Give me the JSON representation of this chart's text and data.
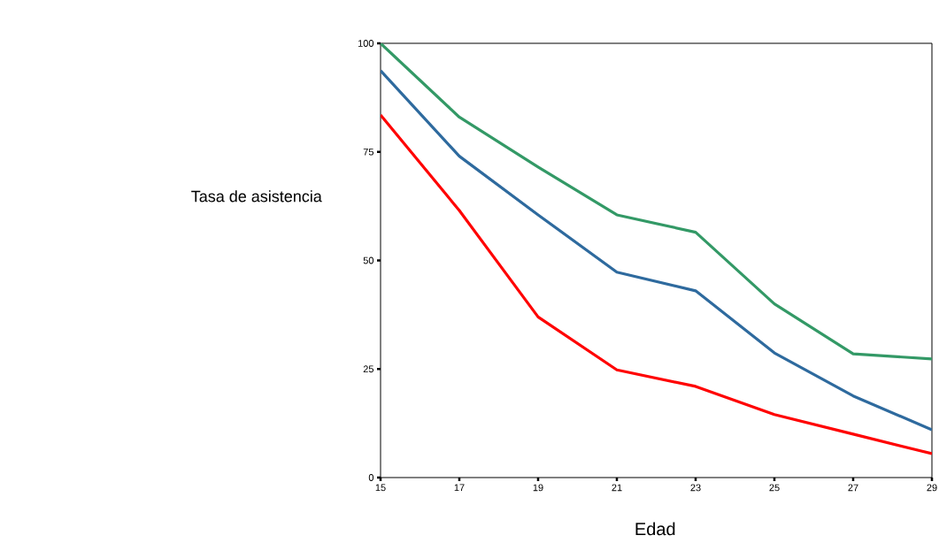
{
  "chart_data": {
    "type": "line",
    "xlabel": "Edad",
    "ylabel": "Tasa de asistencia",
    "x": [
      15,
      17,
      19,
      21,
      23,
      25,
      27,
      29
    ],
    "series": [
      {
        "color": "#339966",
        "values": [
          100,
          83,
          71.5,
          60.5,
          56.5,
          40,
          28.5,
          27.3
        ]
      },
      {
        "color": "#2e6a9e",
        "values": [
          93.7,
          74,
          60.5,
          47.3,
          43,
          28.7,
          18.8,
          11
        ]
      },
      {
        "color": "#ff0000",
        "values": [
          83.5,
          61.5,
          37,
          24.8,
          21,
          14.5,
          10,
          5.5
        ]
      }
    ],
    "xlim": [
      15,
      29
    ],
    "xticks": [
      15,
      17,
      19,
      21,
      23,
      25,
      27,
      29
    ],
    "ylim": [
      0,
      100
    ],
    "yticks": [
      0,
      25,
      50,
      75,
      100
    ],
    "marker": "none",
    "line_style": "solid"
  }
}
